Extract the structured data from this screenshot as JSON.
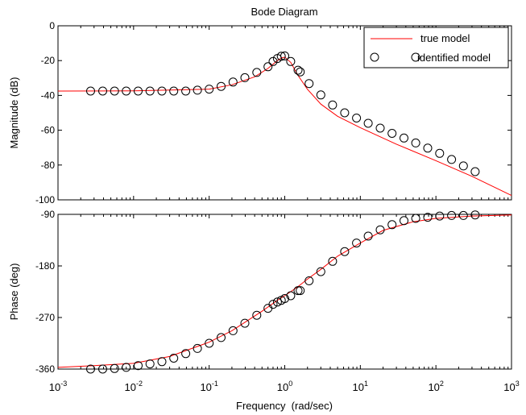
{
  "chart_data": [
    {
      "type": "line",
      "title": "Bode Diagram",
      "ylabel": "Magnitude (dB)",
      "xlabel": "",
      "xscale": "log",
      "xlim": [
        0.001,
        1000
      ],
      "ylim": [
        -100,
        0
      ],
      "yticks": [
        0,
        -20,
        -40,
        -60,
        -80,
        -100
      ],
      "yticklabels": [
        "0",
        "-20",
        "-40",
        "-60",
        "-80",
        "-100"
      ],
      "grid": false,
      "legend": {
        "position": "top-right",
        "entries": [
          "true model",
          "identified model"
        ]
      },
      "series": [
        {
          "name": "true model",
          "style": "line",
          "color": "#ff0000",
          "x": [
            0.001,
            0.01,
            0.1,
            0.2,
            0.4,
            0.6,
            0.8,
            0.9,
            1,
            1.2,
            1.5,
            2,
            3,
            5,
            10,
            30,
            100,
            300,
            1000
          ],
          "y": [
            -37.5,
            -37.4,
            -36.4,
            -33.9,
            -29.3,
            -24.5,
            -20.0,
            -18.5,
            -18.0,
            -21.0,
            -28.5,
            -36.5,
            -45.0,
            -52.0,
            -58.5,
            -68.0,
            -77.5,
            -86.5,
            -97.5
          ]
        },
        {
          "name": "identified model",
          "style": "markers",
          "marker": "circle",
          "color": "#000000",
          "x": [
            0.0027,
            0.0039,
            0.0056,
            0.008,
            0.0115,
            0.0165,
            0.0237,
            0.034,
            0.049,
            0.07,
            0.1,
            0.144,
            0.207,
            0.297,
            0.427,
            0.6,
            0.7,
            0.8,
            0.9,
            1.0,
            1.2,
            1.5,
            1.6,
            2.1,
            3.0,
            4.3,
            6.2,
            8.9,
            12.7,
            18.3,
            26.3,
            37.8,
            54,
            78,
            112,
            161,
            231,
            331
          ],
          "y": [
            -37.5,
            -37.5,
            -37.5,
            -37.5,
            -37.5,
            -37.5,
            -37.5,
            -37.5,
            -37.5,
            -37.0,
            -36.4,
            -34.8,
            -32.3,
            -29.8,
            -26.8,
            -23.5,
            -20.5,
            -18.8,
            -17.5,
            -17.3,
            -20.5,
            -25.5,
            -26.5,
            -33.2,
            -39.7,
            -45.5,
            -50.0,
            -53.0,
            -56.0,
            -58.8,
            -61.8,
            -64.5,
            -67.3,
            -70.3,
            -73.3,
            -76.8,
            -80.5,
            -83.8
          ]
        }
      ]
    },
    {
      "type": "line",
      "title": "",
      "ylabel": "Phase (deg)",
      "xlabel": "Frequency  (rad/sec)",
      "xscale": "log",
      "xlim": [
        0.001,
        1000
      ],
      "ylim": [
        -360,
        -90
      ],
      "xticks": [
        0.001,
        0.01,
        0.1,
        1,
        10,
        100,
        1000
      ],
      "xtick_labels": [
        {
          "base": "10",
          "exp": "-3"
        },
        {
          "base": "10",
          "exp": "-2"
        },
        {
          "base": "10",
          "exp": "-1"
        },
        {
          "base": "10",
          "exp": "0"
        },
        {
          "base": "10",
          "exp": "1"
        },
        {
          "base": "10",
          "exp": "2"
        },
        {
          "base": "10",
          "exp": "3"
        }
      ],
      "yticks": [
        -90,
        -180,
        -270,
        -360
      ],
      "yticklabels": [
        "-90",
        "-180",
        "-270",
        "-360"
      ],
      "grid": false,
      "series": [
        {
          "name": "true model",
          "style": "line",
          "color": "#ff0000",
          "x": [
            0.001,
            0.003,
            0.01,
            0.03,
            0.1,
            0.2,
            0.5,
            0.8,
            1,
            1.5,
            2,
            3,
            5,
            10,
            20,
            50,
            100,
            300,
            1000
          ],
          "y": [
            -357,
            -354,
            -350,
            -338,
            -313,
            -293,
            -259,
            -240,
            -232,
            -216,
            -203,
            -186,
            -163,
            -140,
            -118,
            -103,
            -97,
            -93,
            -91
          ]
        },
        {
          "name": "identified model",
          "style": "markers",
          "marker": "circle",
          "color": "#000000",
          "x": [
            0.0027,
            0.0039,
            0.0056,
            0.008,
            0.0115,
            0.0165,
            0.0237,
            0.034,
            0.049,
            0.07,
            0.1,
            0.144,
            0.207,
            0.297,
            0.427,
            0.6,
            0.7,
            0.8,
            0.9,
            1.0,
            1.2,
            1.5,
            1.6,
            2.1,
            3.0,
            4.3,
            6.2,
            8.9,
            12.7,
            18.3,
            26.3,
            37.8,
            54,
            78,
            112,
            161,
            231,
            331
          ],
          "y": [
            -360,
            -360,
            -359,
            -357,
            -354,
            -351,
            -347,
            -341,
            -333,
            -324,
            -315,
            -305,
            -293,
            -280,
            -266,
            -254,
            -247,
            -243,
            -240,
            -237,
            -232,
            -223,
            -223,
            -206,
            -190,
            -172,
            -155,
            -140,
            -128,
            -117,
            -108,
            -101,
            -97,
            -95,
            -93,
            -92,
            -92,
            -91
          ]
        }
      ]
    }
  ]
}
